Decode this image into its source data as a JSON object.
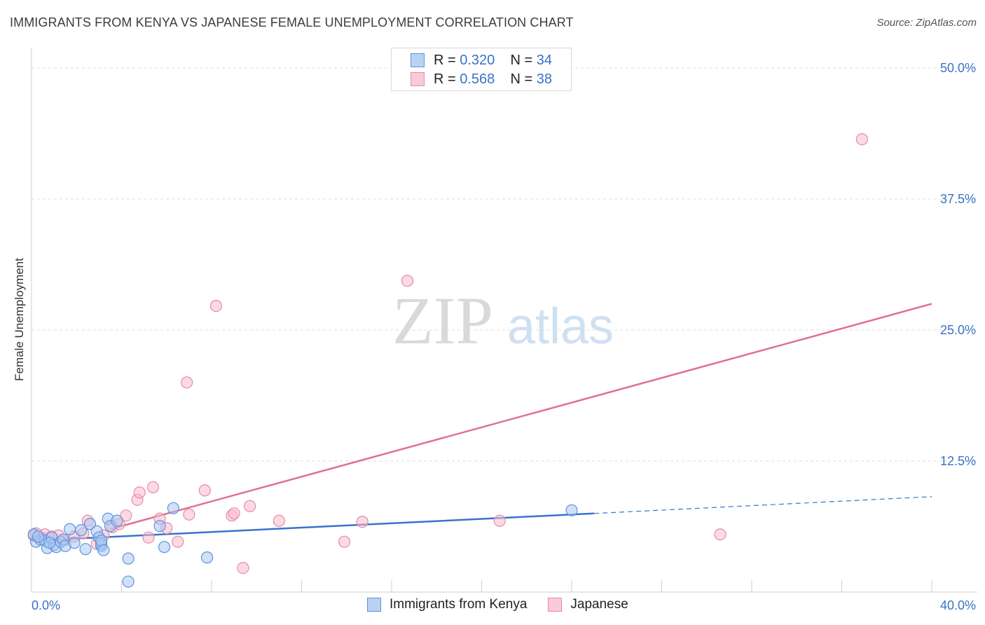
{
  "header": {
    "title": "IMMIGRANTS FROM KENYA VS JAPANESE FEMALE UNEMPLOYMENT CORRELATION CHART",
    "source": "Source: ZipAtlas.com"
  },
  "colors": {
    "blue_fill": "#a9c8f2",
    "blue_stroke": "#5f93de",
    "blue_line": "#3674cc",
    "pink_fill": "#f7bccd",
    "pink_stroke": "#e88aa8",
    "pink_line": "#e0708f",
    "tick_label": "#3a72c8"
  },
  "legend_top": [
    {
      "r_label": "R = ",
      "r_value": "0.320",
      "n_label": "N = ",
      "n_value": "34"
    },
    {
      "r_label": "R = ",
      "r_value": "0.568",
      "n_label": "N = ",
      "n_value": "38"
    }
  ],
  "chart_data": {
    "type": "scatter",
    "title": "IMMIGRANTS FROM KENYA VS JAPANESE FEMALE UNEMPLOYMENT CORRELATION CHART",
    "xlabel": "",
    "ylabel": "Female Unemployment",
    "xlim": [
      0,
      40
    ],
    "ylim": [
      0,
      50
    ],
    "x_tick_labels": {
      "left": "0.0%",
      "right": "40.0%"
    },
    "y_ticks": [
      {
        "value": 12.5,
        "label": "12.5%"
      },
      {
        "value": 25.0,
        "label": "25.0%"
      },
      {
        "value": 37.5,
        "label": "37.5%"
      },
      {
        "value": 50.0,
        "label": "50.0%"
      }
    ],
    "watermark": {
      "part1": "ZIP",
      "part2": "atlas"
    },
    "series": [
      {
        "name": "Immigrants from Kenya",
        "color": "blue",
        "points": [
          [
            0.2,
            4.8
          ],
          [
            0.4,
            5.0
          ],
          [
            0.6,
            4.9
          ],
          [
            0.7,
            4.2
          ],
          [
            0.9,
            5.2
          ],
          [
            1.0,
            4.5
          ],
          [
            1.1,
            4.3
          ],
          [
            1.3,
            4.8
          ],
          [
            1.4,
            5.0
          ],
          [
            1.5,
            4.4
          ],
          [
            1.7,
            6.0
          ],
          [
            1.9,
            4.7
          ],
          [
            2.2,
            5.9
          ],
          [
            2.4,
            4.1
          ],
          [
            2.6,
            6.5
          ],
          [
            2.9,
            5.8
          ],
          [
            3.0,
            5.2
          ],
          [
            3.1,
            4.4
          ],
          [
            3.1,
            4.6
          ],
          [
            3.1,
            4.9
          ],
          [
            3.2,
            4.0
          ],
          [
            3.4,
            7.0
          ],
          [
            3.5,
            6.3
          ],
          [
            3.8,
            6.8
          ],
          [
            4.3,
            1.0
          ],
          [
            4.3,
            3.2
          ],
          [
            5.7,
            6.3
          ],
          [
            5.9,
            4.3
          ],
          [
            6.3,
            8.0
          ],
          [
            7.8,
            3.3
          ],
          [
            24.0,
            7.8
          ],
          [
            0.1,
            5.5
          ],
          [
            0.3,
            5.3
          ],
          [
            0.8,
            4.7
          ]
        ],
        "trend": {
          "x0": 0,
          "y0": 4.9,
          "x1": 25,
          "y1": 7.5,
          "dash_to_x": 40,
          "dash_to_y": 9.1
        }
      },
      {
        "name": "Japanese",
        "color": "pink",
        "points": [
          [
            0.1,
            5.4
          ],
          [
            0.3,
            5.2
          ],
          [
            0.6,
            5.5
          ],
          [
            0.9,
            5.3
          ],
          [
            1.2,
            5.4
          ],
          [
            1.5,
            5.0
          ],
          [
            1.9,
            5.3
          ],
          [
            2.3,
            5.6
          ],
          [
            2.5,
            6.8
          ],
          [
            2.9,
            4.6
          ],
          [
            3.2,
            5.4
          ],
          [
            3.6,
            6.2
          ],
          [
            3.9,
            6.5
          ],
          [
            4.2,
            7.3
          ],
          [
            4.7,
            8.8
          ],
          [
            4.8,
            9.5
          ],
          [
            5.2,
            5.2
          ],
          [
            5.4,
            10.0
          ],
          [
            5.7,
            7.0
          ],
          [
            6.0,
            6.1
          ],
          [
            6.5,
            4.8
          ],
          [
            6.9,
            20.0
          ],
          [
            7.0,
            7.4
          ],
          [
            7.7,
            9.7
          ],
          [
            8.2,
            27.3
          ],
          [
            8.9,
            7.3
          ],
          [
            9.0,
            7.5
          ],
          [
            9.4,
            2.3
          ],
          [
            9.7,
            8.2
          ],
          [
            11.0,
            6.8
          ],
          [
            13.9,
            4.8
          ],
          [
            14.7,
            6.7
          ],
          [
            16.7,
            29.7
          ],
          [
            20.8,
            6.8
          ],
          [
            30.6,
            5.5
          ],
          [
            36.9,
            43.2
          ],
          [
            0.2,
            5.6
          ],
          [
            0.5,
            5.1
          ]
        ],
        "trend": {
          "x0": 3.5,
          "y0": 6.0,
          "x1": 40,
          "y1": 27.5
        }
      }
    ]
  }
}
